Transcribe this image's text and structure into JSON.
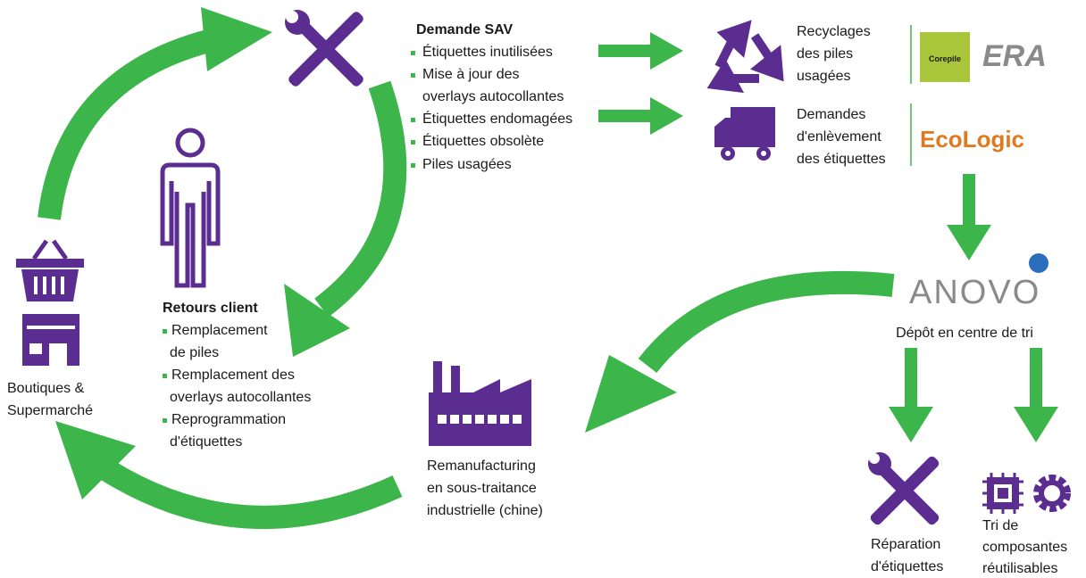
{
  "sav": {
    "title": "Demande SAV",
    "items": [
      [
        "Étiquettes inutilisées"
      ],
      [
        "Mise à jour des",
        "overlays autocollantes"
      ],
      [
        "Étiquettes endomagées"
      ],
      [
        "Étiquettes obsolète"
      ],
      [
        "Piles usagées"
      ]
    ]
  },
  "recycling": {
    "lines": [
      "Recyclages",
      "des piles",
      "usagées"
    ],
    "logos": [
      "Corepile",
      "ERA"
    ]
  },
  "pickup": {
    "lines": [
      "Demandes",
      "d'enlèvement",
      "des étiquettes"
    ],
    "logo": "EcoLogic"
  },
  "depot": {
    "logo": "ANOVO",
    "label": "Dépôt en centre de tri"
  },
  "repair": {
    "lines": [
      "Réparation",
      "d'étiquettes"
    ]
  },
  "sorting": {
    "lines": [
      "Tri de",
      "composantes",
      "réutilisables"
    ]
  },
  "remanufacturing": {
    "lines": [
      "Remanufacturing",
      "en sous-traitance",
      "industrielle (chine)"
    ]
  },
  "shops": {
    "lines": [
      "Boutiques &",
      "Supermarché"
    ]
  },
  "returns": {
    "title": "Retours client",
    "items": [
      [
        "Remplacement",
        "de piles"
      ],
      [
        "Remplacement des",
        "overlays  autocollantes"
      ],
      [
        "Reprogrammation",
        "d'étiquettes"
      ]
    ]
  }
}
